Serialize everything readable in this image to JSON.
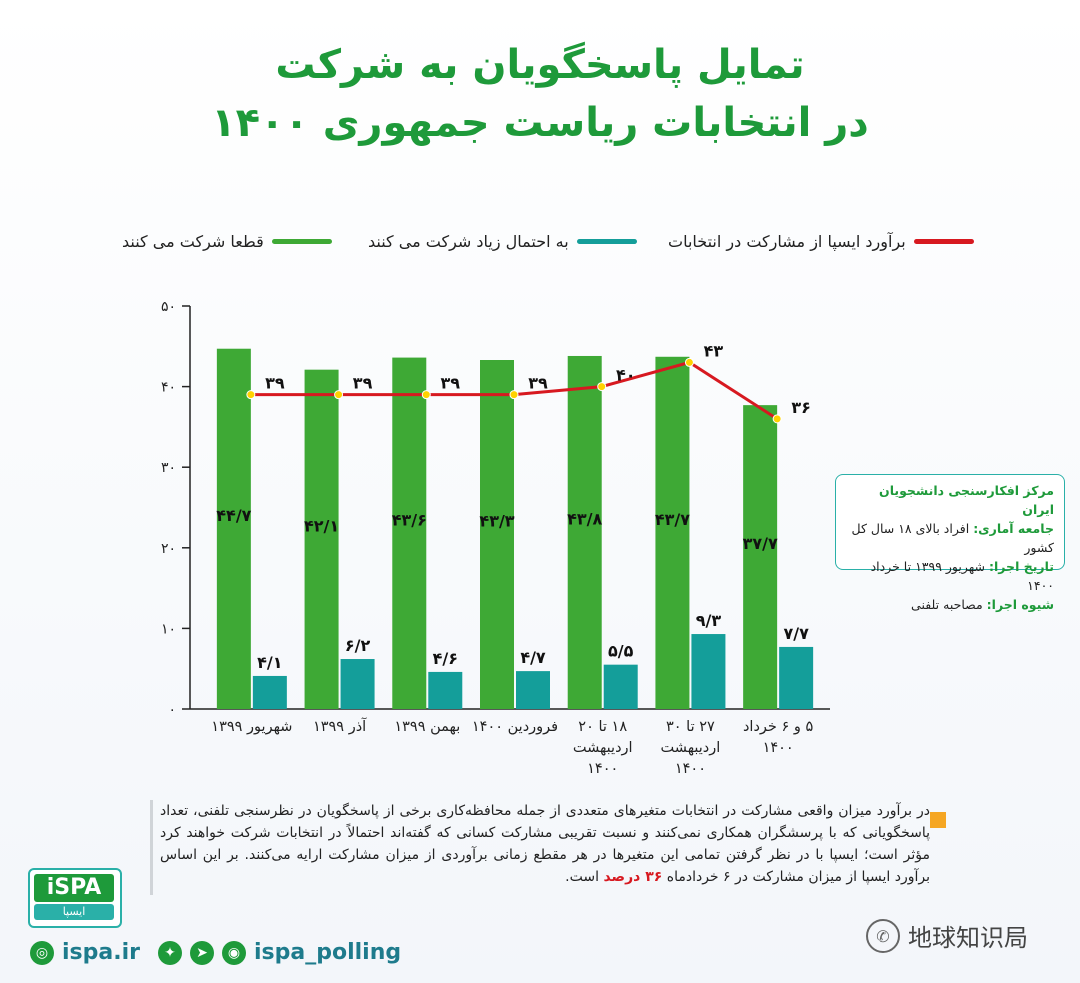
{
  "title_line1": "تمایل پاسخگویان به شرکت",
  "title_line2": "در انتخابات ریاست جمهوری ۱۴۰۰",
  "legend": [
    {
      "label": "برآورد ایسپا از مشارکت در انتخابات",
      "color": "#d71920"
    },
    {
      "label": "به احتمال زیاد شرکت می کنند",
      "color": "#149e9a"
    },
    {
      "label": "قطعا شرکت می کنند",
      "color": "#3ea935"
    }
  ],
  "chart_data": {
    "type": "bar",
    "categories": [
      "شهریور ۱۳۹۹",
      "آذر ۱۳۹۹",
      "بهمن ۱۳۹۹",
      "فروردین ۱۴۰۰",
      "۱۸ تا ۲۰ اردیبهشت ۱۴۰۰",
      "۲۷ تا ۳۰ اردیبهشت ۱۴۰۰",
      "۵ و ۶ خرداد ۱۴۰۰"
    ],
    "category_lines": [
      [
        "شهریور ۱۳۹۹"
      ],
      [
        "آذر ۱۳۹۹"
      ],
      [
        "بهمن ۱۳۹۹"
      ],
      [
        "فروردین ۱۴۰۰"
      ],
      [
        "۱۸ تا ۲۰",
        "اردیبهشت",
        "۱۴۰۰"
      ],
      [
        "۲۷ تا ۳۰",
        "اردیبهشت",
        "۱۴۰۰"
      ],
      [
        "۵ و ۶ خرداد",
        "۱۴۰۰"
      ]
    ],
    "series": [
      {
        "name": "قطعا شرکت می کنند",
        "type": "bar",
        "color": "#3ea935",
        "values": [
          44.7,
          42.1,
          43.6,
          43.3,
          43.8,
          43.7,
          37.7
        ],
        "labels": [
          "۴۴/۷",
          "۴۲/۱",
          "۴۳/۶",
          "۴۳/۳",
          "۴۳/۸",
          "۴۳/۷",
          "۳۷/۷"
        ]
      },
      {
        "name": "به احتمال زیاد شرکت می کنند",
        "type": "bar",
        "color": "#149e9a",
        "values": [
          4.1,
          6.2,
          4.6,
          4.7,
          5.5,
          9.3,
          7.7
        ],
        "labels": [
          "۴/۱",
          "۶/۲",
          "۴/۶",
          "۴/۷",
          "۵/۵",
          "۹/۳",
          "۷/۷"
        ]
      },
      {
        "name": "برآورد ایسپا از مشارکت در انتخابات",
        "type": "line",
        "color": "#d71920",
        "values": [
          39,
          39,
          39,
          39,
          40,
          43,
          36
        ],
        "labels": [
          "۳۹",
          "۳۹",
          "۳۹",
          "۳۹",
          "۴۰",
          "۴۳",
          "۳۶"
        ]
      }
    ],
    "yticks": [
      0,
      10,
      20,
      30,
      40,
      50
    ],
    "ytick_labels": [
      "۰",
      "۱۰",
      "۲۰",
      "۳۰",
      "۴۰",
      "۵۰"
    ],
    "ylim": [
      0,
      50
    ],
    "grid": false,
    "legend_position": "top"
  },
  "infobox": {
    "org": "مرکز افکارسنجی دانشجویان ایران",
    "population_k": "جامعه آماری:",
    "population_v": "افراد بالای ۱۸ سال کل کشور",
    "date_k": "تاریخ اجرا:",
    "date_v": "شهریور ۱۳۹۹ تا خرداد ۱۴۰۰",
    "method_k": "شیوه اجرا:",
    "method_v": "مصاحبه تلفنی"
  },
  "note": {
    "text": "در برآورد میزان واقعی مشارکت در انتخابات متغیرهای متعددی از جمله محافظه‌کاری برخی از پاسخگویان در نظرسنجی تلفنی، تعداد پاسخگویانی که با پرسشگران همکاری نمی‌کنند و نسبت تقریبی مشارکت کسانی که گفته‌اند احتمالاً در انتخابات شرکت خواهند کرد مؤثر است؛ ایسپا با در نظر گرفتن تمامی این متغیرها در هر مقطع زمانی برآوردی از میزان مشارکت ارایه می‌کنند. بر این اساس برآورد ایسپا از میزان مشارکت در ۶ خردادماه",
    "highlight": "۳۶ درصد",
    "tail": "است."
  },
  "logo": {
    "top": "iSPA",
    "bottom": "ایسپا"
  },
  "footer": {
    "website": "ispa.ir",
    "handle": "ispa_polling"
  },
  "watermark": "地球知识局"
}
